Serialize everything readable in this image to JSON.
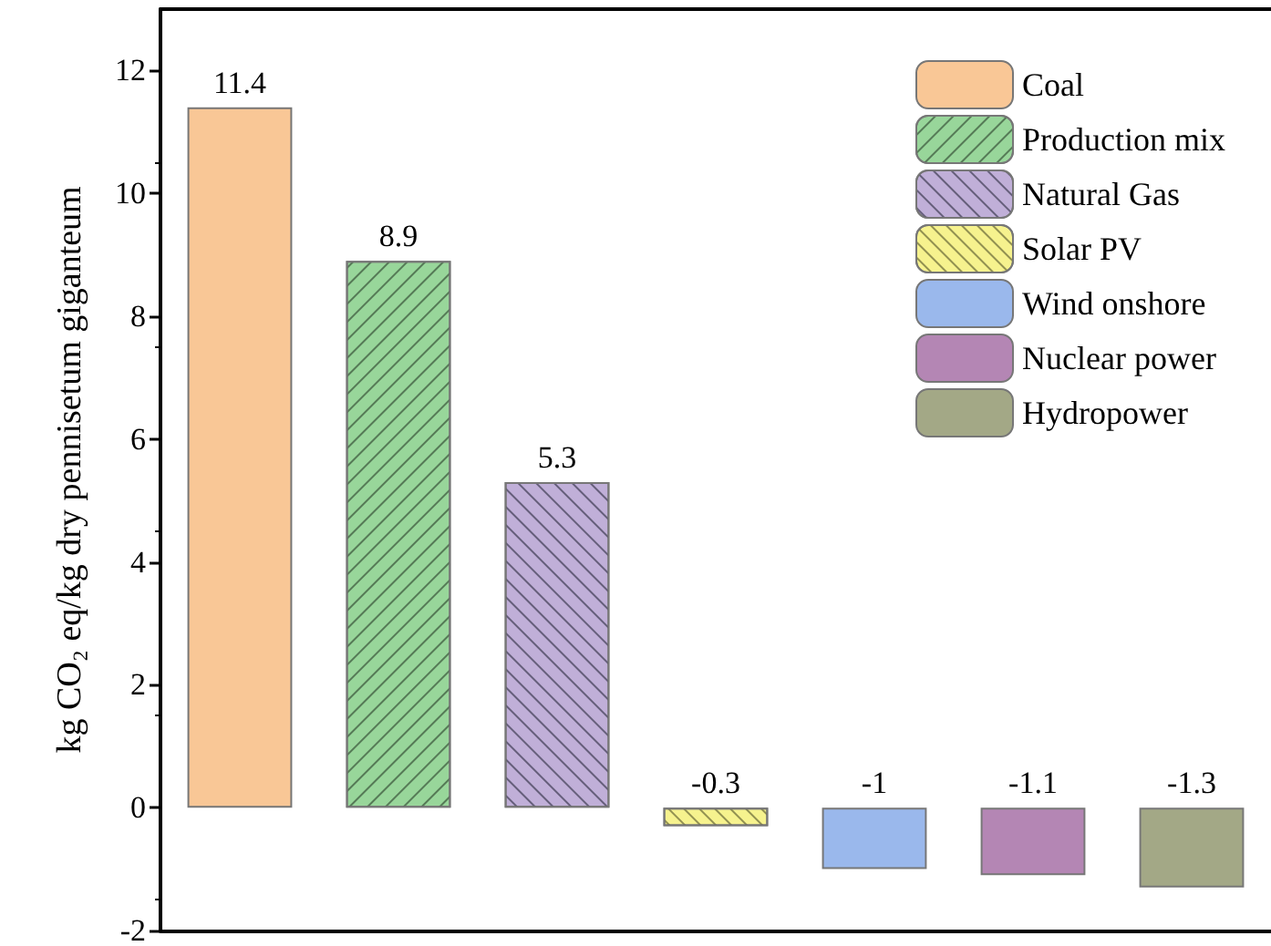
{
  "chart_data": {
    "type": "bar",
    "ylabel": "kg CO₂ eq/kg dry pennisetum giganteum",
    "categories": [
      null,
      null,
      null,
      null,
      null,
      null,
      null
    ],
    "series": [
      {
        "name": "Coal",
        "color": "#f9c796",
        "values": [
          11.4,
          null,
          null,
          null,
          null,
          null,
          null
        ]
      },
      {
        "name": "Production mix",
        "color": "#98d69a",
        "values": [
          null,
          8.9,
          null,
          null,
          null,
          null,
          null
        ]
      },
      {
        "name": "Natural Gas",
        "color": "#c0afd8",
        "values": [
          null,
          null,
          5.3,
          null,
          null,
          null,
          null
        ]
      },
      {
        "name": "Solar PV",
        "color": "#f6f28e",
        "values": [
          null,
          null,
          null,
          -0.3,
          null,
          null,
          null
        ]
      },
      {
        "name": "Wind onshore",
        "color": "#9ab8ec",
        "values": [
          null,
          null,
          null,
          null,
          -1,
          null,
          null
        ]
      },
      {
        "name": "Nuclear power",
        "color": "#b486b4",
        "values": [
          null,
          null,
          null,
          null,
          null,
          -1.1,
          null
        ]
      },
      {
        "name": "Hydropower",
        "color": "#a3a886",
        "values": [
          null,
          null,
          null,
          null,
          null,
          null,
          -1.3
        ]
      }
    ],
    "ylim": [
      -2,
      13
    ],
    "yticks": [
      -2,
      0,
      2,
      4,
      6,
      8,
      10,
      12
    ],
    "grid": false,
    "legend": "top right",
    "data_labels": true
  }
}
